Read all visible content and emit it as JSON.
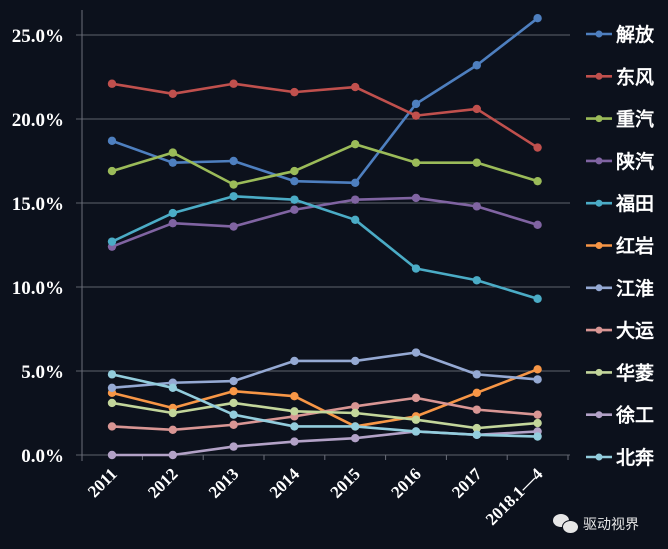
{
  "chart_data": {
    "type": "line",
    "title": "",
    "xlabel": "",
    "ylabel": "",
    "categories": [
      "2011",
      "2012",
      "2013",
      "2014",
      "2015",
      "2016",
      "2017",
      "2018.1—4"
    ],
    "ylim": [
      0,
      25
    ],
    "yticks": [
      0,
      5,
      10,
      15,
      20,
      25
    ],
    "ytick_labels": [
      "0.0%",
      "5.0%",
      "10.0%",
      "15.0%",
      "20.0%",
      "25.0%"
    ],
    "grid": true,
    "legend_position": "right",
    "series": [
      {
        "name": "解放",
        "color": "#4e7fbf",
        "values": [
          18.7,
          17.4,
          17.5,
          16.3,
          16.2,
          20.9,
          23.2,
          26.0
        ]
      },
      {
        "name": "东风",
        "color": "#c0504d",
        "values": [
          22.1,
          21.5,
          22.1,
          21.6,
          21.9,
          20.2,
          20.6,
          18.3
        ]
      },
      {
        "name": "重汽",
        "color": "#9bbb59",
        "values": [
          16.9,
          18.0,
          16.1,
          16.9,
          18.5,
          17.4,
          17.4,
          16.3
        ]
      },
      {
        "name": "陕汽",
        "color": "#8064a2",
        "values": [
          12.4,
          13.8,
          13.6,
          14.6,
          15.2,
          15.3,
          14.8,
          13.7
        ]
      },
      {
        "name": "福田",
        "color": "#4bacc6",
        "values": [
          12.7,
          14.4,
          15.4,
          15.2,
          14.0,
          11.1,
          10.4,
          9.3
        ]
      },
      {
        "name": "红岩",
        "color": "#f79646",
        "values": [
          3.7,
          2.8,
          3.8,
          3.5,
          1.7,
          2.3,
          3.7,
          5.1
        ]
      },
      {
        "name": "江淮",
        "color": "#95a9d3",
        "values": [
          4.0,
          4.3,
          4.4,
          5.6,
          5.6,
          6.1,
          4.8,
          4.5
        ]
      },
      {
        "name": "大运",
        "color": "#d99694",
        "values": [
          1.7,
          1.5,
          1.8,
          2.3,
          2.9,
          3.4,
          2.7,
          2.4
        ]
      },
      {
        "name": "华菱",
        "color": "#c3d69b",
        "values": [
          3.1,
          2.5,
          3.1,
          2.6,
          2.5,
          2.1,
          1.6,
          1.9
        ]
      },
      {
        "name": "徐工",
        "color": "#b3a2c7",
        "values": [
          0.0,
          0.0,
          0.5,
          0.8,
          1.0,
          1.4,
          1.2,
          1.4
        ]
      },
      {
        "name": "北奔",
        "color": "#93cddd",
        "values": [
          4.8,
          4.0,
          2.4,
          1.7,
          1.7,
          1.4,
          1.2,
          1.1
        ]
      }
    ]
  },
  "watermark": {
    "icon": "wechat-icon",
    "text": "驱动视界"
  }
}
